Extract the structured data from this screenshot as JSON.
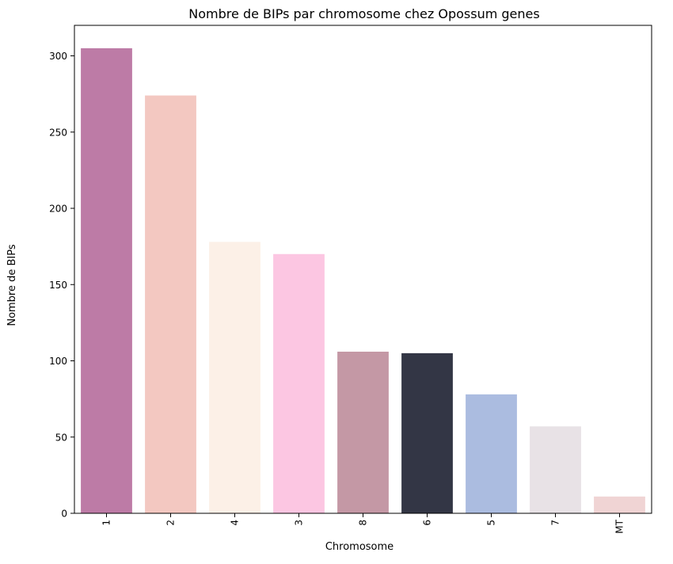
{
  "chart_data": {
    "type": "bar",
    "title": "Nombre de BIPs par chromosome chez Opossum genes",
    "xlabel": "Chromosome",
    "ylabel": "Nombre de BIPs",
    "categories": [
      "1",
      "2",
      "4",
      "3",
      "8",
      "6",
      "5",
      "7",
      "MT"
    ],
    "values": [
      305,
      274,
      178,
      170,
      106,
      105,
      78,
      57,
      11
    ],
    "colors": [
      "#bd7ba6",
      "#f3c8c1",
      "#fcf0e7",
      "#fcc6e2",
      "#c498a5",
      "#333645",
      "#abbce0",
      "#e8e2e6",
      "#f0d4d4"
    ],
    "ylim": [
      0,
      320
    ],
    "yticks": [
      0,
      50,
      100,
      150,
      200,
      250,
      300
    ],
    "grid": false,
    "xtick_rotation": "vertical"
  }
}
